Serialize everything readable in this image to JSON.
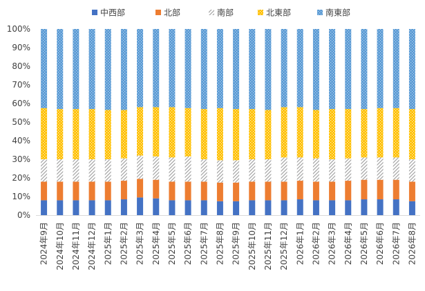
{
  "chart_data": {
    "type": "bar",
    "stacked": true,
    "percent_stacked": true,
    "title": "",
    "xlabel": "",
    "ylabel": "",
    "ylim": [
      0,
      100
    ],
    "y_ticks": [
      "0%",
      "10%",
      "20%",
      "30%",
      "40%",
      "50%",
      "60%",
      "70%",
      "80%",
      "90%",
      "100%"
    ],
    "legend_position": "top",
    "grid": false,
    "categories": [
      "2024年9月",
      "2024年10月",
      "2024年11月",
      "2024年12月",
      "2025年1月",
      "2025年2月",
      "2025年3月",
      "2025年4月",
      "2025年5月",
      "2025年6月",
      "2025年7月",
      "2025年8月",
      "2025年9月",
      "2025年10月",
      "2025年11月",
      "2025年12月",
      "2026年1月",
      "2026年2月",
      "2026年3月",
      "2026年4月",
      "2026年5月",
      "2026年6月",
      "2026年7月",
      "2026年8月"
    ],
    "series": [
      {
        "name": "中西部",
        "color": "#4472C4",
        "pattern": "solid",
        "values": [
          8.0,
          8.0,
          8.0,
          8.0,
          8.0,
          8.5,
          9.5,
          9.0,
          8.0,
          8.0,
          8.0,
          7.5,
          7.5,
          8.0,
          8.0,
          8.0,
          8.5,
          8.0,
          8.0,
          8.0,
          8.5,
          8.5,
          8.5,
          7.5
        ]
      },
      {
        "name": "北部",
        "color": "#ED7D31",
        "pattern": "solid",
        "values": [
          10.0,
          10.0,
          10.0,
          10.0,
          10.0,
          10.0,
          10.0,
          10.0,
          10.0,
          10.0,
          10.0,
          10.0,
          10.0,
          10.0,
          10.0,
          10.0,
          10.0,
          10.0,
          10.0,
          10.5,
          10.5,
          10.5,
          10.5,
          10.5
        ]
      },
      {
        "name": "南部",
        "color": "#A5A5A5",
        "pattern": "diagonal",
        "values": [
          12.0,
          12.0,
          12.0,
          12.0,
          12.0,
          12.0,
          12.5,
          12.5,
          13.0,
          13.5,
          12.0,
          12.0,
          12.0,
          12.0,
          12.0,
          13.0,
          12.5,
          12.5,
          12.0,
          12.0,
          12.0,
          12.0,
          12.0,
          12.0
        ]
      },
      {
        "name": "北東部",
        "color": "#FFC000",
        "pattern": "dots",
        "values": [
          27.5,
          27.0,
          27.0,
          27.0,
          26.5,
          26.0,
          26.0,
          26.5,
          27.0,
          26.0,
          27.0,
          28.0,
          27.5,
          27.0,
          26.5,
          27.0,
          27.0,
          26.0,
          27.0,
          26.5,
          26.0,
          26.5,
          26.5,
          27.0
        ]
      },
      {
        "name": "南東部",
        "color": "#5B9BD5",
        "pattern": "dots",
        "values": [
          42.5,
          43.0,
          43.0,
          43.0,
          43.5,
          43.5,
          42.0,
          42.0,
          42.0,
          42.5,
          43.0,
          42.5,
          43.0,
          43.0,
          43.5,
          42.0,
          42.0,
          43.5,
          43.0,
          43.0,
          43.0,
          42.5,
          42.5,
          43.0
        ]
      }
    ]
  }
}
